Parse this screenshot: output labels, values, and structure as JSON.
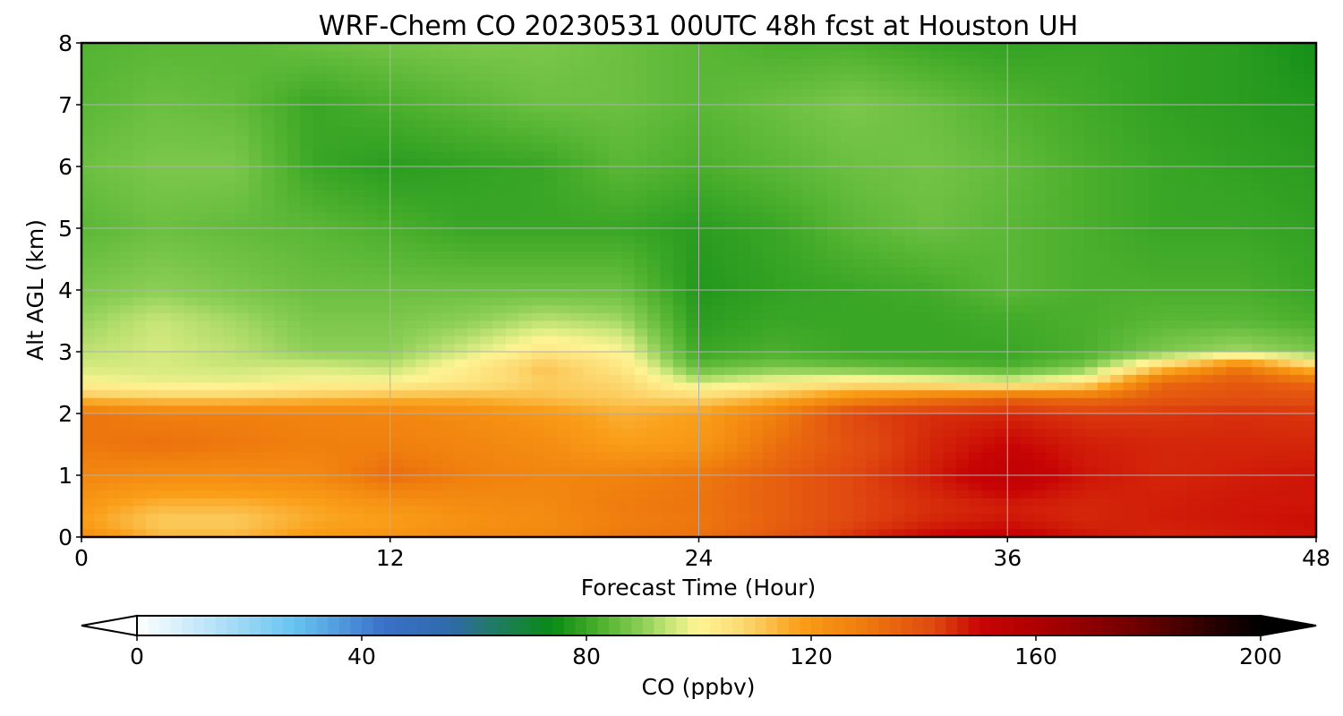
{
  "chart_data": [
    {
      "type": "heatmap",
      "title": "WRF-Chem CO  20230531 00UTC 48h fcst at Houston UH",
      "xlabel": "Forecast Time (Hour)",
      "ylabel": "Alt AGL (km)",
      "xlim": [
        0,
        48
      ],
      "ylim": [
        0,
        8
      ],
      "xticks": [
        "0",
        "12",
        "24",
        "36",
        "48"
      ],
      "yticks": [
        "0",
        "1",
        "2",
        "3",
        "4",
        "5",
        "6",
        "7",
        "8"
      ],
      "grid": true,
      "x_hours": [
        0,
        3,
        6,
        9,
        12,
        15,
        18,
        21,
        24,
        27,
        30,
        33,
        36,
        39,
        42,
        45,
        48
      ],
      "z_km": [
        0,
        0.25,
        0.5,
        1,
        1.5,
        2,
        2.25,
        2.5,
        2.75,
        3,
        3.5,
        4,
        5,
        6,
        7,
        8
      ],
      "values": [
        [
          124,
          114,
          114,
          120,
          122,
          125,
          126,
          130,
          132,
          138,
          145,
          150,
          152,
          148,
          146,
          147,
          148
        ],
        [
          118,
          110,
          110,
          116,
          118,
          122,
          124,
          128,
          130,
          136,
          142,
          146,
          148,
          146,
          147,
          148,
          149
        ],
        [
          120,
          114,
          114,
          117,
          121,
          124,
          125,
          129,
          131,
          136,
          142,
          145,
          147,
          146,
          147,
          148,
          148
        ],
        [
          126,
          124,
          124,
          125,
          133,
          128,
          126,
          127,
          130,
          136,
          142,
          147,
          154,
          148,
          146,
          147,
          148
        ],
        [
          130,
          132,
          130,
          128,
          128,
          126,
          124,
          118,
          120,
          132,
          140,
          146,
          150,
          147,
          146,
          146,
          146
        ],
        [
          131,
          128,
          128,
          127,
          126,
          124,
          120,
          115,
          118,
          128,
          142,
          145,
          146,
          144,
          144,
          145,
          144
        ],
        [
          112,
          110,
          110,
          112,
          114,
          114,
          112,
          110,
          108,
          114,
          124,
          130,
          135,
          132,
          138,
          140,
          140
        ],
        [
          100,
          98,
          98,
          100,
          100,
          104,
          110,
          108,
          95,
          100,
          104,
          102,
          98,
          104,
          134,
          138,
          134
        ],
        [
          96,
          96,
          95,
          96,
          94,
          102,
          112,
          104,
          85,
          88,
          86,
          84,
          82,
          88,
          110,
          130,
          110
        ],
        [
          94,
          96,
          94,
          90,
          90,
          96,
          104,
          100,
          80,
          82,
          80,
          80,
          80,
          82,
          88,
          92,
          88
        ],
        [
          91,
          95,
          92,
          88,
          88,
          90,
          94,
          92,
          78,
          80,
          80,
          80,
          81,
          82,
          84,
          84,
          82
        ],
        [
          88,
          90,
          88,
          86,
          86,
          86,
          86,
          86,
          77,
          79,
          80,
          81,
          84,
          82,
          82,
          82,
          80
        ],
        [
          84,
          86,
          85,
          84,
          82,
          80,
          80,
          80,
          78,
          80,
          84,
          86,
          84,
          82,
          80,
          80,
          79
        ],
        [
          86,
          88,
          88,
          80,
          78,
          79,
          80,
          84,
          82,
          84,
          86,
          87,
          85,
          82,
          80,
          79,
          78
        ],
        [
          84,
          86,
          85,
          80,
          82,
          84,
          86,
          86,
          84,
          86,
          88,
          86,
          83,
          81,
          79,
          78,
          77
        ],
        [
          83,
          84,
          84,
          86,
          87,
          88,
          88,
          86,
          84,
          82,
          82,
          80,
          79,
          80,
          79,
          78,
          75
        ]
      ]
    },
    {
      "type": "colorbar",
      "label": "CO  (ppbv)",
      "range": [
        0,
        200
      ],
      "extend": "both",
      "ticks": [
        "0",
        "40",
        "80",
        "120",
        "160",
        "200"
      ],
      "stops": [
        [
          0,
          "#ffffff"
        ],
        [
          12,
          "#bfe6f8"
        ],
        [
          28,
          "#68c4f0"
        ],
        [
          44,
          "#3a70c8"
        ],
        [
          56,
          "#2f6aa8"
        ],
        [
          64,
          "#1f7c60"
        ],
        [
          74,
          "#0a8a14"
        ],
        [
          82,
          "#4aaf2c"
        ],
        [
          90,
          "#8ccf56"
        ],
        [
          96,
          "#d6ea80"
        ],
        [
          100,
          "#fff494"
        ],
        [
          108,
          "#fcd870"
        ],
        [
          118,
          "#fa9e18"
        ],
        [
          128,
          "#f0800e"
        ],
        [
          142,
          "#e04810"
        ],
        [
          150,
          "#c80404"
        ],
        [
          160,
          "#b00000"
        ],
        [
          178,
          "#6e0000"
        ],
        [
          190,
          "#300000"
        ],
        [
          200,
          "#000000"
        ]
      ]
    }
  ]
}
